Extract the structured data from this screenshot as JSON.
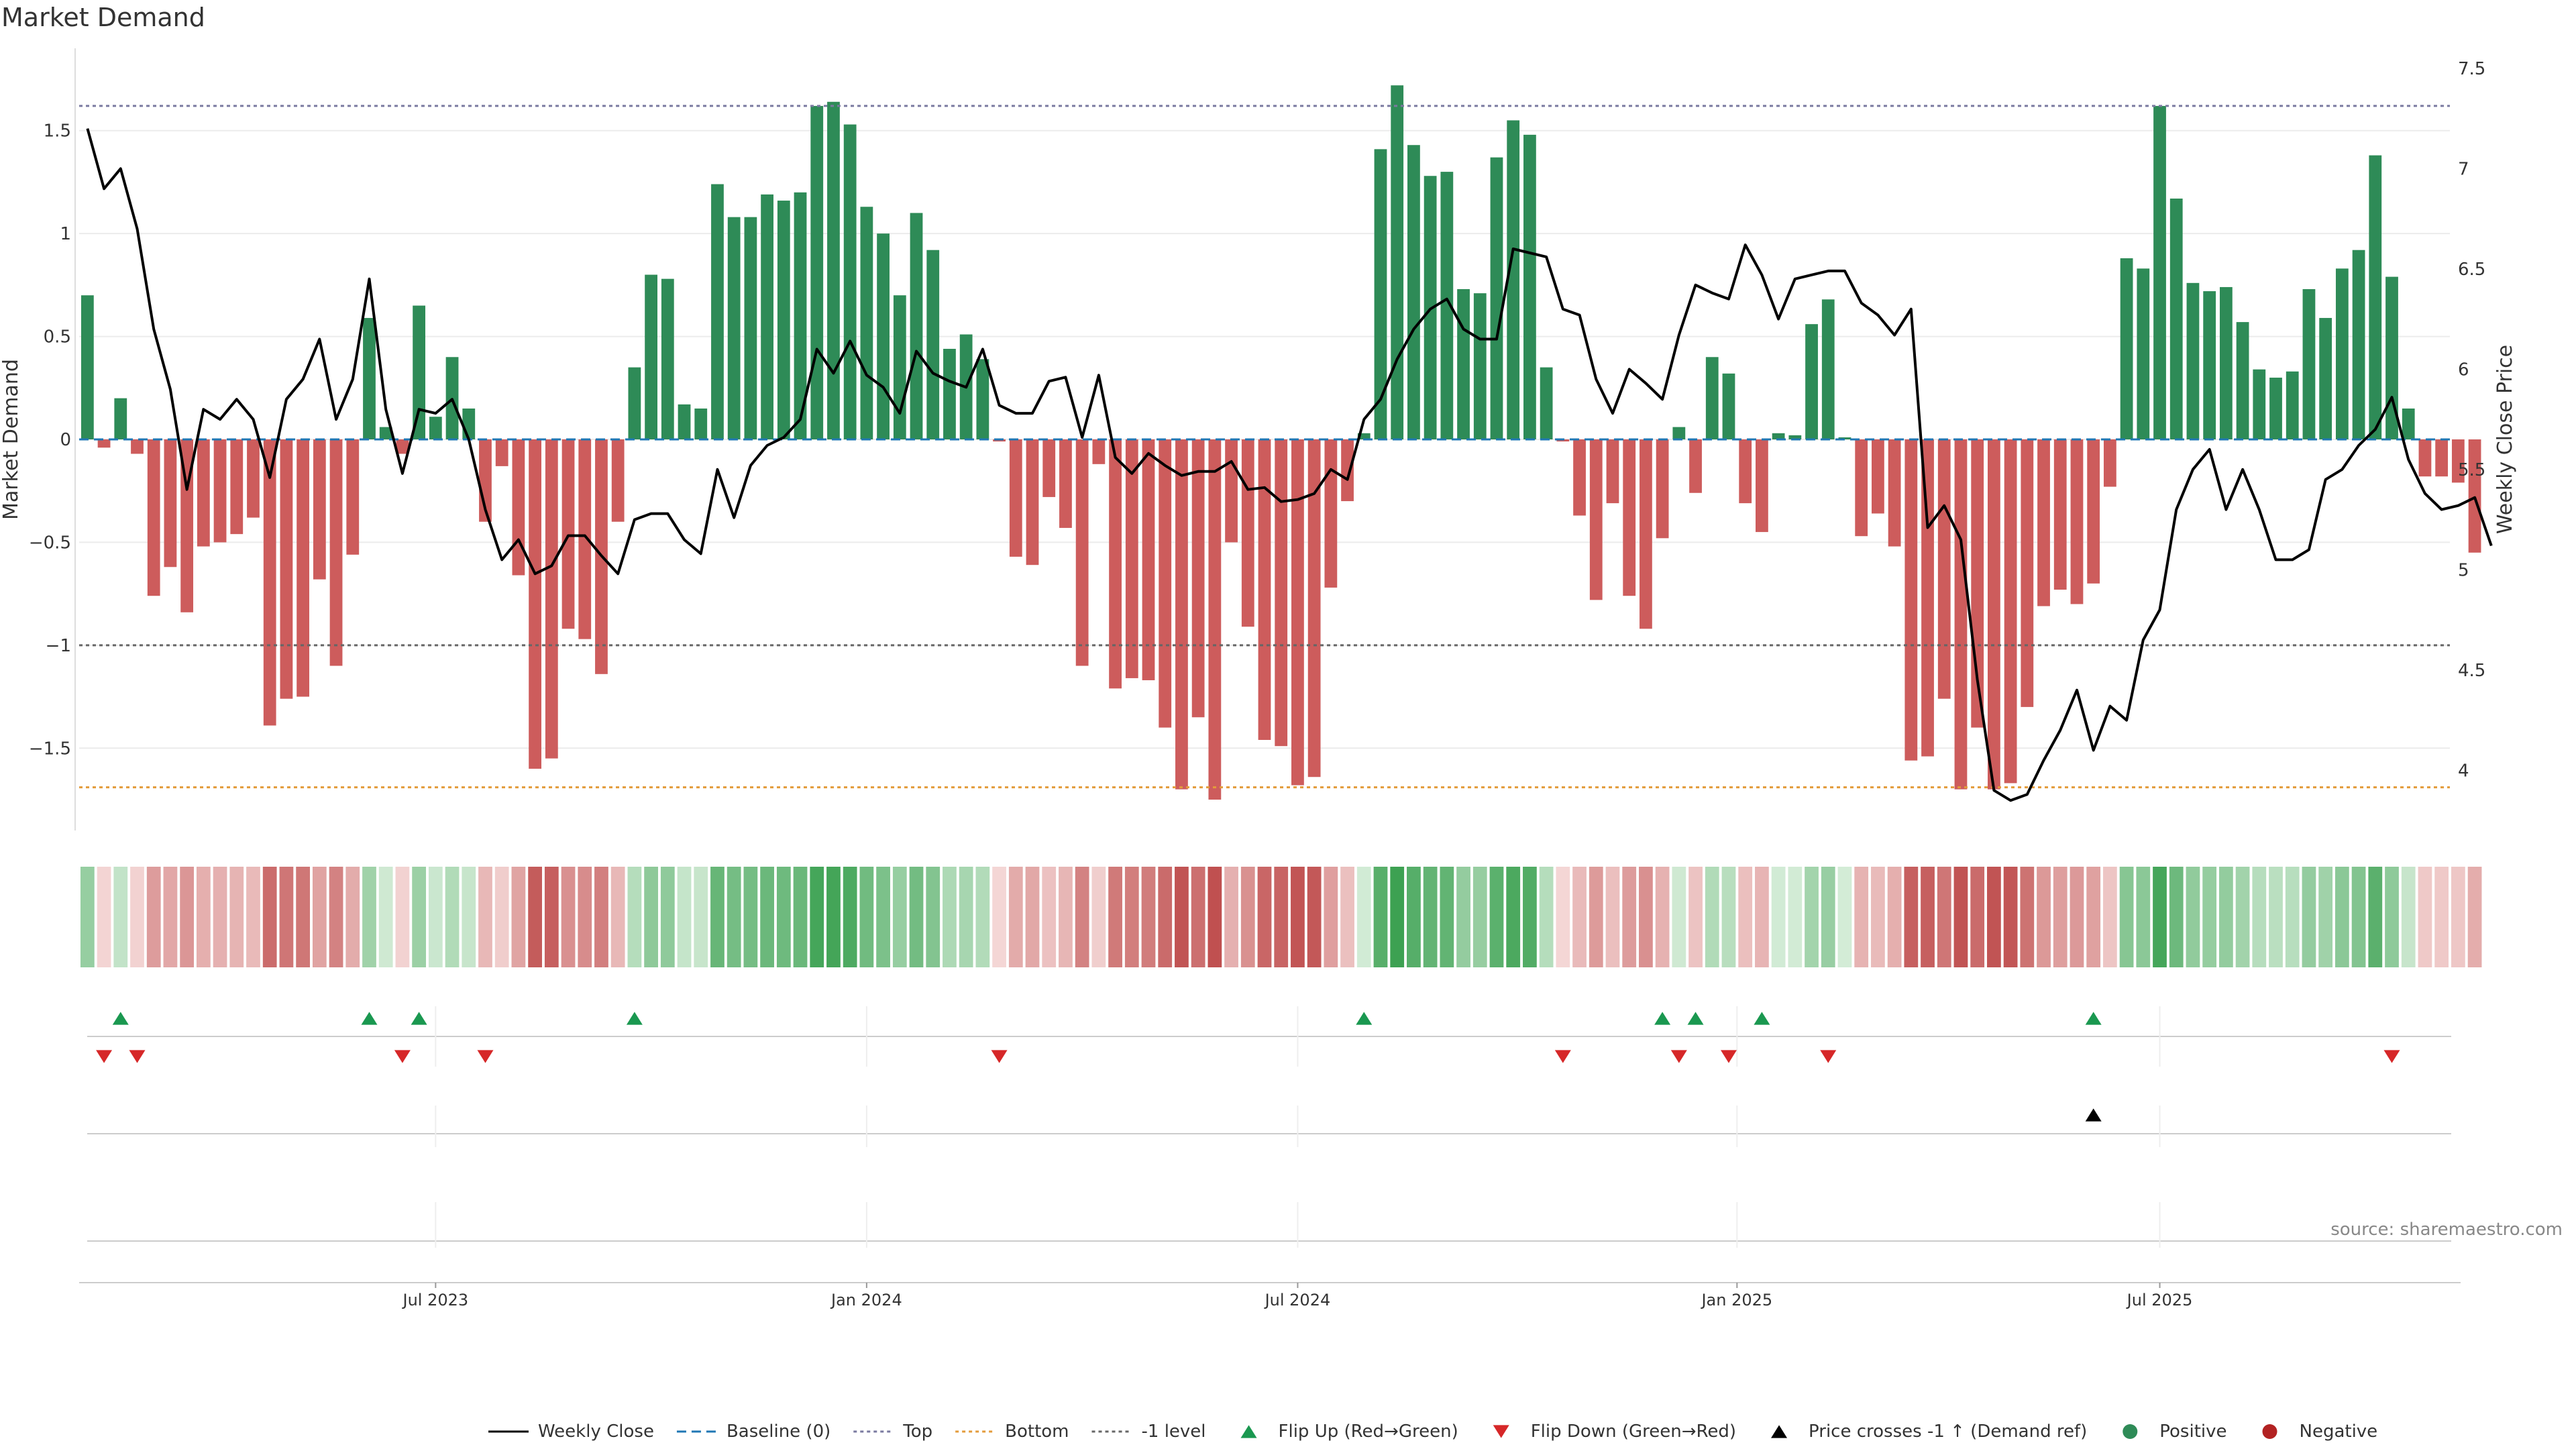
{
  "chart_data": {
    "type": "bar",
    "title": "Market Demand",
    "source": "source: sharemaestro.com",
    "ylabel_left": "Market Demand",
    "ylabel_right": "Weekly Close Price",
    "ylim_left": [
      -1.9,
      1.9
    ],
    "ylim_right": [
      3.7,
      7.6
    ],
    "yticks_left": [
      {
        "v": -1.5,
        "label": "−1.5"
      },
      {
        "v": -1,
        "label": "−1"
      },
      {
        "v": -0.5,
        "label": "−0.5"
      },
      {
        "v": 0,
        "label": "0"
      },
      {
        "v": 0.5,
        "label": "0.5"
      },
      {
        "v": 1,
        "label": "1"
      },
      {
        "v": 1.5,
        "label": "1.5"
      }
    ],
    "yticks_right": [
      {
        "v": 4,
        "label": "4"
      },
      {
        "v": 4.5,
        "label": "4.5"
      },
      {
        "v": 5,
        "label": "5"
      },
      {
        "v": 5.5,
        "label": "5.5"
      },
      {
        "v": 6,
        "label": "6"
      },
      {
        "v": 6.5,
        "label": "6.5"
      },
      {
        "v": 7,
        "label": "7"
      },
      {
        "v": 7.5,
        "label": "7.5"
      }
    ],
    "xticks": [
      {
        "week": 21,
        "label": "Jul 2023"
      },
      {
        "week": 47,
        "label": "Jan 2024"
      },
      {
        "week": 73,
        "label": "Jul 2024"
      },
      {
        "week": 99.5,
        "label": "Jan 2025"
      },
      {
        "week": 125,
        "label": "Jul 2025"
      }
    ],
    "n_weeks": 143,
    "ref_lines": {
      "top": 1.62,
      "bottom": -1.69,
      "minus_one": -1,
      "baseline": 0
    },
    "demand": [
      0.7,
      -0.04,
      0.2,
      -0.07,
      -0.76,
      -0.62,
      -0.84,
      -0.52,
      -0.5,
      -0.46,
      -0.38,
      -1.39,
      -1.26,
      -1.25,
      -0.68,
      -1.1,
      -0.56,
      0.59,
      0.06,
      -0.07,
      0.65,
      0.11,
      0.4,
      0.15,
      -0.4,
      -0.13,
      -0.66,
      -1.6,
      -1.55,
      -0.92,
      -0.97,
      -1.14,
      -0.4,
      0.35,
      0.8,
      0.78,
      0.17,
      0.15,
      1.24,
      1.08,
      1.08,
      1.19,
      1.16,
      1.2,
      1.62,
      1.64,
      1.53,
      1.13,
      1.0,
      0.7,
      1.1,
      0.92,
      0.44,
      0.51,
      0.39,
      -0.01,
      -0.57,
      -0.61,
      -0.28,
      -0.43,
      -1.1,
      -0.12,
      -1.21,
      -1.16,
      -1.17,
      -1.4,
      -1.7,
      -1.35,
      -1.75,
      -0.5,
      -0.91,
      -1.46,
      -1.49,
      -1.68,
      -1.64,
      -0.72,
      -0.3,
      0.03,
      1.41,
      1.72,
      1.43,
      1.28,
      1.3,
      0.73,
      0.71,
      1.37,
      1.55,
      1.48,
      0.35,
      -0.01,
      -0.37,
      -0.78,
      -0.31,
      -0.76,
      -0.92,
      -0.48,
      0.06,
      -0.26,
      0.4,
      0.32,
      -0.31,
      -0.45,
      0.03,
      0.02,
      0.56,
      0.68,
      0.01,
      -0.47,
      -0.36,
      -0.52,
      -1.56,
      -1.54,
      -1.26,
      -1.7,
      -1.4,
      -1.7,
      -1.67,
      -1.3,
      -0.81,
      -0.73,
      -0.8,
      -0.7,
      -0.23,
      0.88,
      0.83,
      1.62,
      1.17,
      0.76,
      0.72,
      0.74,
      0.57,
      0.34,
      0.3,
      0.33,
      0.73,
      0.59,
      0.83,
      0.92,
      1.38,
      0.79,
      0.15,
      -0.18,
      -0.18,
      -0.21,
      -0.55
    ],
    "price": [
      7.2,
      6.9,
      7.0,
      6.7,
      6.2,
      5.9,
      5.4,
      5.8,
      5.75,
      5.85,
      5.75,
      5.46,
      5.85,
      5.95,
      6.15,
      5.75,
      5.95,
      6.45,
      5.8,
      5.48,
      5.8,
      5.78,
      5.85,
      5.65,
      5.3,
      5.05,
      5.15,
      4.98,
      5.02,
      5.17,
      5.17,
      5.07,
      4.98,
      5.25,
      5.28,
      5.28,
      5.15,
      5.08,
      5.5,
      5.26,
      5.52,
      5.62,
      5.66,
      5.75,
      6.1,
      5.98,
      6.14,
      5.97,
      5.91,
      5.78,
      6.09,
      5.98,
      5.94,
      5.91,
      6.1,
      5.82,
      5.78,
      5.78,
      5.94,
      5.96,
      5.66,
      5.97,
      5.56,
      5.48,
      5.58,
      5.52,
      5.47,
      5.49,
      5.49,
      5.54,
      5.4,
      5.41,
      5.34,
      5.35,
      5.38,
      5.5,
      5.45,
      5.75,
      5.85,
      6.05,
      6.2,
      6.3,
      6.35,
      6.2,
      6.15,
      6.15,
      6.6,
      6.58,
      6.56,
      6.3,
      6.27,
      5.95,
      5.78,
      6.0,
      5.93,
      5.85,
      6.17,
      6.42,
      6.38,
      6.35,
      6.62,
      6.47,
      6.25,
      6.45,
      6.47,
      6.49,
      6.49,
      6.33,
      6.27,
      6.17,
      6.3,
      5.21,
      5.32,
      5.15,
      4.45,
      3.9,
      3.85,
      3.88,
      4.05,
      4.2,
      4.4,
      4.1,
      4.32,
      4.25,
      4.65,
      4.8,
      5.3,
      5.5,
      5.6,
      5.3,
      5.5,
      5.3,
      5.05,
      5.05,
      5.1,
      5.45,
      5.5,
      5.62,
      5.7,
      5.86,
      5.55,
      5.38,
      5.3,
      5.32,
      5.36,
      5.12
    ],
    "flip_up_weeks": [
      2,
      17,
      20,
      33,
      77,
      95,
      97,
      101,
      121
    ],
    "flip_down_weeks": [
      1,
      3,
      19,
      24,
      55,
      89,
      96,
      99,
      105,
      139
    ],
    "price_cross_weeks": [
      121
    ],
    "colors": {
      "positive": "#2e8b57",
      "negative": "#cd5c5c",
      "price": "#000000",
      "baseline": "#1f77b4",
      "top": "#7a7aa0",
      "bottom": "#e39b3a",
      "minus_one": "#666666",
      "flip_up": "#1a9850",
      "flip_down": "#d62728",
      "cross": "#000000"
    },
    "legend": [
      {
        "label": "Weekly Close",
        "symbol": "line"
      },
      {
        "label": "Baseline (0)",
        "symbol": "dash-blue"
      },
      {
        "label": "Top",
        "symbol": "dot-purple"
      },
      {
        "label": "Bottom",
        "symbol": "dot-orange"
      },
      {
        "label": "-1 level",
        "symbol": "dot-gray"
      },
      {
        "label": "Flip Up (Red→Green)",
        "symbol": "tri-up-green"
      },
      {
        "label": "Flip Down (Green→Red)",
        "symbol": "tri-down-red"
      },
      {
        "label": "Price crosses -1 ↑ (Demand ref)",
        "symbol": "tri-up-black"
      },
      {
        "label": "Positive",
        "symbol": "circle-green"
      },
      {
        "label": "Negative",
        "symbol": "circle-red"
      }
    ]
  }
}
